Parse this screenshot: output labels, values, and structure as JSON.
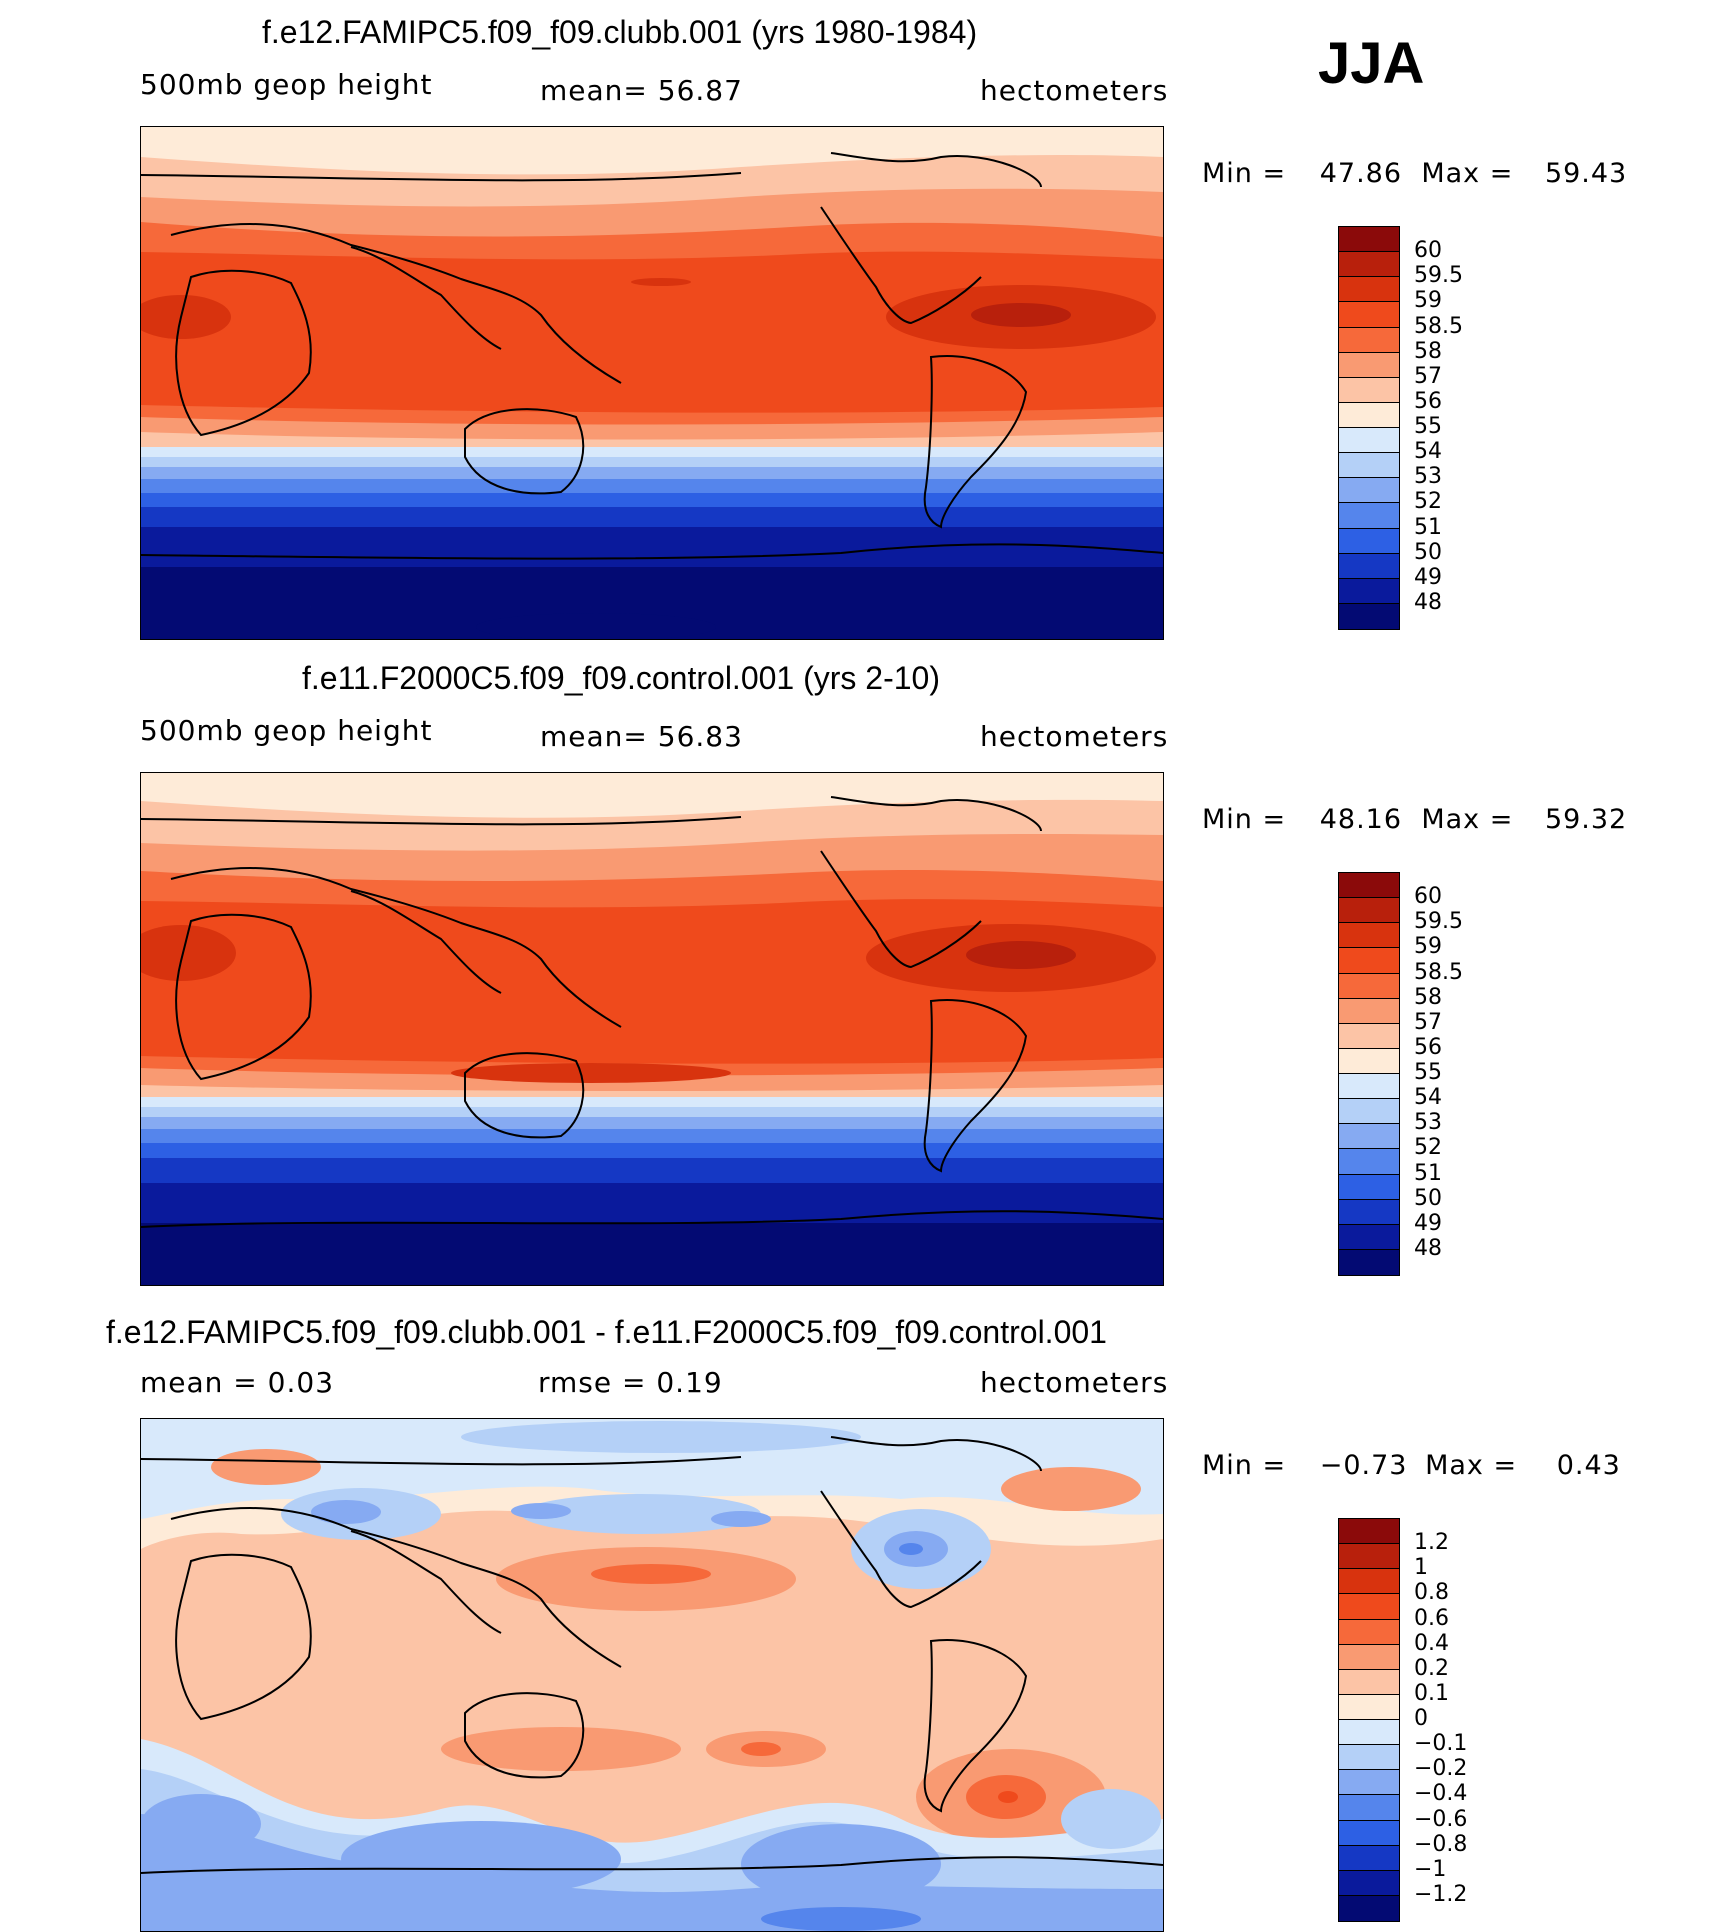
{
  "season": "JJA",
  "panels": [
    {
      "title": "f.e12.FAMIPC5.f09_f09.clubb.001 (yrs 1980-1984)",
      "left_label": "500mb  geop  height",
      "mid_label": "mean=   56.87",
      "right_label": "hectometers",
      "min_label": "Min  =",
      "min_value": "47.86",
      "max_label": "Max  =",
      "max_value": "59.43",
      "kind": "abs"
    },
    {
      "title": "f.e11.F2000C5.f09_f09.control.001 (yrs 2-10)",
      "left_label": "500mb  geop  height",
      "mid_label": "mean=   56.83",
      "right_label": "hectometers",
      "min_label": "Min  =",
      "min_value": "48.16",
      "max_label": "Max  =",
      "max_value": "59.32",
      "kind": "abs"
    },
    {
      "title": "f.e12.FAMIPC5.f09_f09.clubb.001 - f.e11.F2000C5.f09_f09.control.001",
      "left_label": "mean  =     0.03",
      "mid_label": "rmse  =     0.19",
      "right_label": "hectometers",
      "min_label": "Min  =",
      "min_value": "−0.73",
      "max_label": "Max  =",
      "max_value": "0.43",
      "kind": "diff"
    }
  ],
  "colorbars": {
    "abs": {
      "labels": [
        "60",
        "59.5",
        "59",
        "58.5",
        "58",
        "57",
        "56",
        "55",
        "54",
        "53",
        "52",
        "51",
        "50",
        "49",
        "48"
      ],
      "colors": [
        "#8b0a0a",
        "#b8200c",
        "#d8330e",
        "#ef4a1c",
        "#f6693a",
        "#f99a72",
        "#fcc4a6",
        "#feebd8",
        "#d8e9fb",
        "#b4d0f7",
        "#86aaf2",
        "#5585ec",
        "#2d60e4",
        "#1538c4",
        "#0a1a9c",
        "#030a73"
      ]
    },
    "diff": {
      "labels": [
        "1.2",
        "1",
        "0.8",
        "0.6",
        "0.4",
        "0.2",
        "0.1",
        "0",
        "−0.1",
        "−0.2",
        "−0.4",
        "−0.6",
        "−0.8",
        "−1",
        "−1.2"
      ],
      "colors": [
        "#8b0a0a",
        "#b8200c",
        "#d8330e",
        "#ef4a1c",
        "#f6693a",
        "#f99a72",
        "#fcc4a6",
        "#feebd8",
        "#d8e9fb",
        "#b4d0f7",
        "#86aaf2",
        "#5585ec",
        "#2d60e4",
        "#1538c4",
        "#0a1a9c",
        "#030a73"
      ]
    }
  },
  "chart_data": [
    {
      "type": "heatmap",
      "title": "f.e12.FAMIPC5.f09_f09.clubb.001 (yrs 1980-1984)",
      "variable": "500mb geop height",
      "units": "hectometers",
      "mean": 56.87,
      "min": 47.86,
      "max": 59.43,
      "levels": [
        48,
        49,
        50,
        51,
        52,
        53,
        54,
        55,
        56,
        57,
        58,
        58.5,
        59,
        59.5,
        60
      ]
    },
    {
      "type": "heatmap",
      "title": "f.e11.F2000C5.f09_f09.control.001 (yrs 2-10)",
      "variable": "500mb geop height",
      "units": "hectometers",
      "mean": 56.83,
      "min": 48.16,
      "max": 59.32,
      "levels": [
        48,
        49,
        50,
        51,
        52,
        53,
        54,
        55,
        56,
        57,
        58,
        58.5,
        59,
        59.5,
        60
      ]
    },
    {
      "type": "heatmap",
      "title": "f.e12.FAMIPC5.f09_f09.clubb.001 - f.e11.F2000C5.f09_f09.control.001",
      "units": "hectometers",
      "mean": 0.03,
      "rmse": 0.19,
      "min": -0.73,
      "max": 0.43,
      "levels": [
        -1.2,
        -1,
        -0.8,
        -0.6,
        -0.4,
        -0.2,
        -0.1,
        0,
        0.1,
        0.2,
        0.4,
        0.6,
        0.8,
        1,
        1.2
      ]
    }
  ]
}
